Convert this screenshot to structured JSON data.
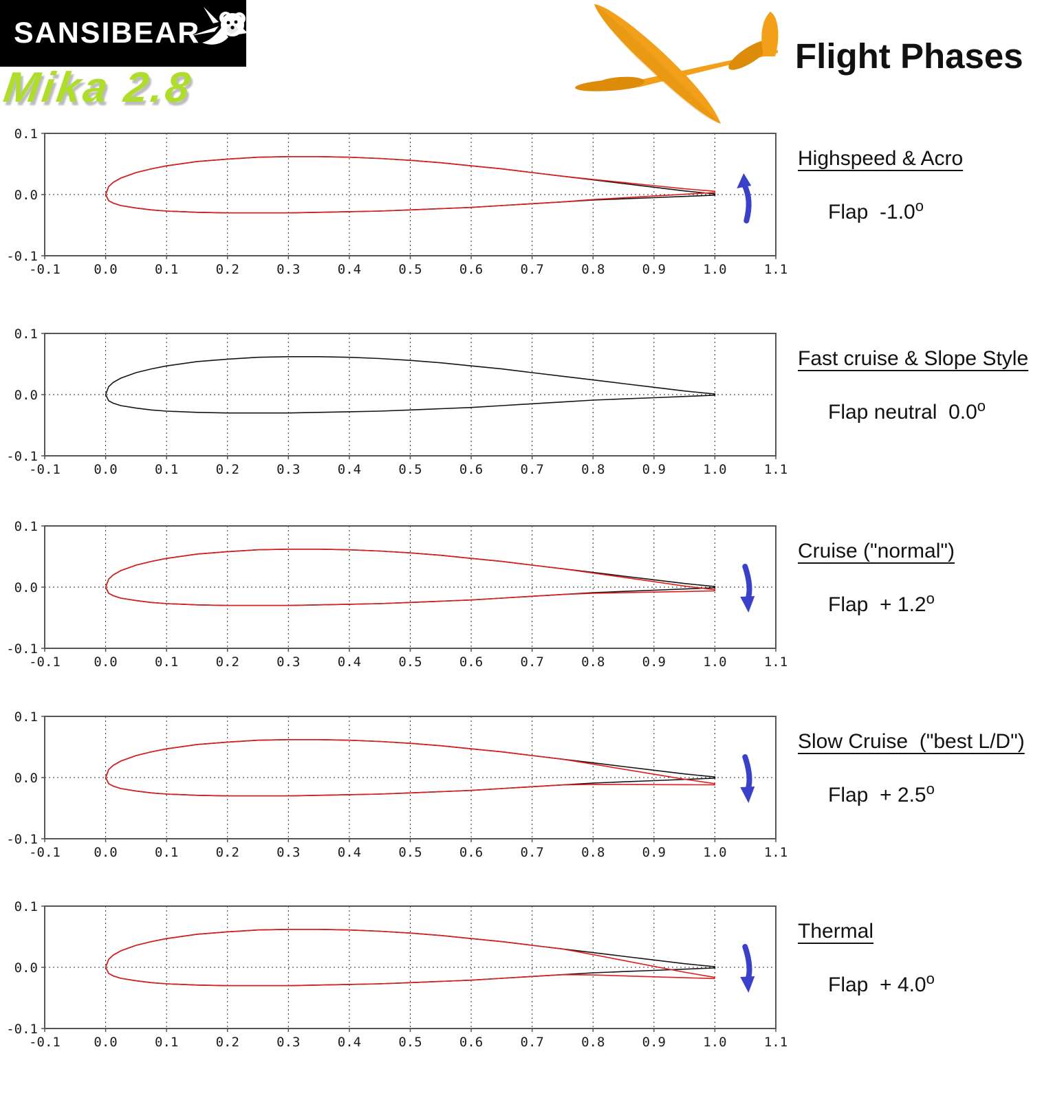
{
  "header": {
    "logo_text": "SANSIBEAR",
    "product_name": "Mika 2.8",
    "title": "Flight Phases"
  },
  "degree_mark": "o",
  "colors": {
    "logo_bg": "#000000",
    "logo_fg": "#ffffff",
    "brand_green": "#aede2a",
    "glider_orange": "#f2a019",
    "glider_orange_dark": "#dd8c0a",
    "profile_flapped": "#dd1d1d",
    "profile_neutral": "#141414",
    "grid": "#2a2a2a",
    "axis_border": "#555555",
    "arrow_blue": "#3a41c8"
  },
  "phases": [
    {
      "name": "Highspeed & Acro",
      "flap_label": "Flap  -1.0",
      "flap_deg": -1.0,
      "arrow": "up"
    },
    {
      "name": "Fast cruise & Slope Style",
      "flap_label": "Flap neutral  0.0",
      "flap_deg": 0.0,
      "arrow": "none"
    },
    {
      "name": "Cruise (\"normal\")",
      "flap_label": "Flap  + 1.2",
      "flap_deg": 1.2,
      "arrow": "down"
    },
    {
      "name": "Slow Cruise  (\"best L/D\")",
      "flap_label": "Flap  + 2.5",
      "flap_deg": 2.5,
      "arrow": "down"
    },
    {
      "name": "Thermal",
      "flap_label": "Flap  + 4.0",
      "flap_deg": 4.0,
      "arrow": "down"
    }
  ],
  "chart_data": {
    "type": "line",
    "description": "Five airfoil section plots of the Mika 2.8 wing profile showing flap (camber) settings for each flight phase. Black outline = neutral profile, red outline = profile with flap deflected about hinge at x = 0.75. Blue arrow shows flap direction at trailing edge.",
    "xlim": [
      -0.1,
      1.1
    ],
    "ylim": [
      -0.1,
      0.1
    ],
    "xticks": [
      "-0.1",
      "0.0",
      "0.1",
      "0.2",
      "0.3",
      "0.4",
      "0.5",
      "0.6",
      "0.7",
      "0.8",
      "0.9",
      "1.0",
      "1.1"
    ],
    "yticks": [
      "0.1",
      "0.0",
      "-0.1"
    ],
    "grid": "dashed vertical lines at x=0.0..1.0 step 0.1, dashed horizontal line at y=0",
    "flap_hinge_x": 0.75,
    "airfoil_upper": [
      [
        0,
        0
      ],
      [
        0.005,
        0.013
      ],
      [
        0.0125,
        0.02
      ],
      [
        0.025,
        0.027
      ],
      [
        0.05,
        0.036
      ],
      [
        0.075,
        0.042
      ],
      [
        0.1,
        0.047
      ],
      [
        0.15,
        0.054
      ],
      [
        0.2,
        0.058
      ],
      [
        0.25,
        0.061
      ],
      [
        0.3,
        0.062
      ],
      [
        0.35,
        0.062
      ],
      [
        0.4,
        0.061
      ],
      [
        0.45,
        0.059
      ],
      [
        0.5,
        0.056
      ],
      [
        0.55,
        0.052
      ],
      [
        0.6,
        0.047
      ],
      [
        0.65,
        0.042
      ],
      [
        0.7,
        0.036
      ],
      [
        0.75,
        0.03
      ],
      [
        0.8,
        0.024
      ],
      [
        0.85,
        0.018
      ],
      [
        0.9,
        0.012
      ],
      [
        0.95,
        0.006
      ],
      [
        1,
        0.001
      ]
    ],
    "airfoil_lower": [
      [
        0,
        0
      ],
      [
        0.005,
        -0.01
      ],
      [
        0.0125,
        -0.014
      ],
      [
        0.025,
        -0.018
      ],
      [
        0.05,
        -0.022
      ],
      [
        0.075,
        -0.025
      ],
      [
        0.1,
        -0.027
      ],
      [
        0.15,
        -0.029
      ],
      [
        0.2,
        -0.03
      ],
      [
        0.25,
        -0.03
      ],
      [
        0.3,
        -0.03
      ],
      [
        0.35,
        -0.029
      ],
      [
        0.4,
        -0.028
      ],
      [
        0.45,
        -0.027
      ],
      [
        0.5,
        -0.025
      ],
      [
        0.55,
        -0.023
      ],
      [
        0.6,
        -0.021
      ],
      [
        0.65,
        -0.018
      ],
      [
        0.7,
        -0.015
      ],
      [
        0.75,
        -0.012
      ],
      [
        0.8,
        -0.009
      ],
      [
        0.85,
        -0.007
      ],
      [
        0.9,
        -0.005
      ],
      [
        0.95,
        -0.003
      ],
      [
        1,
        -0.001
      ]
    ],
    "charts": [
      {
        "title": "Highspeed & Acro",
        "flap_deg": -1.0,
        "arrow": "up",
        "series": [
          "neutral",
          "flapped"
        ]
      },
      {
        "title": "Fast cruise & Slope Style",
        "flap_deg": 0.0,
        "arrow": "none",
        "series": [
          "neutral"
        ]
      },
      {
        "title": "Cruise (\"normal\")",
        "flap_deg": 1.2,
        "arrow": "down",
        "series": [
          "neutral",
          "flapped"
        ]
      },
      {
        "title": "Slow Cruise  (\"best L/D\")",
        "flap_deg": 2.5,
        "arrow": "down",
        "series": [
          "neutral",
          "flapped"
        ]
      },
      {
        "title": "Thermal",
        "flap_deg": 4.0,
        "arrow": "down",
        "series": [
          "neutral",
          "flapped"
        ]
      }
    ]
  }
}
